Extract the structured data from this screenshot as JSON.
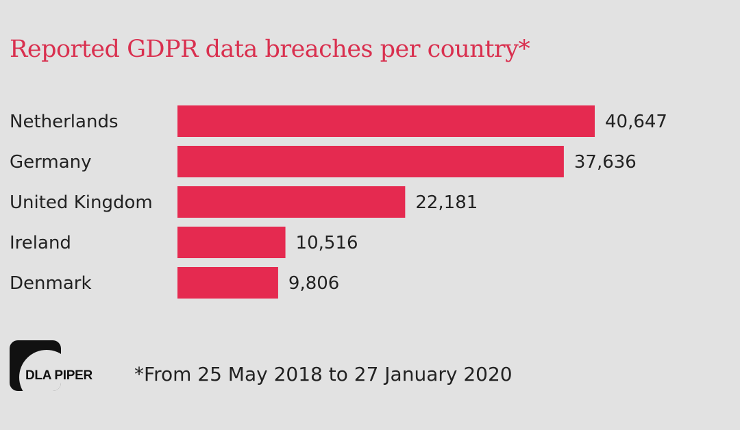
{
  "chart_data": {
    "type": "bar",
    "orientation": "horizontal",
    "title": "Reported GDPR data breaches per country*",
    "categories": [
      "Netherlands",
      "Germany",
      "United Kingdom",
      "Ireland",
      "Denmark"
    ],
    "values": [
      40647,
      37636,
      22181,
      10516,
      9806
    ],
    "value_labels": [
      "40,647",
      "37,636",
      "22,181",
      "10,516",
      "9,806"
    ],
    "xlabel": "",
    "ylabel": "",
    "grid": false,
    "bar_color": "#e52a50",
    "footnote": "*From 25 May 2018 to 27 January 2020"
  },
  "logo": {
    "text": "DLA PIPER"
  },
  "colors": {
    "background": "#e2e2e2",
    "title": "#d9304f",
    "bar": "#e52a50"
  }
}
